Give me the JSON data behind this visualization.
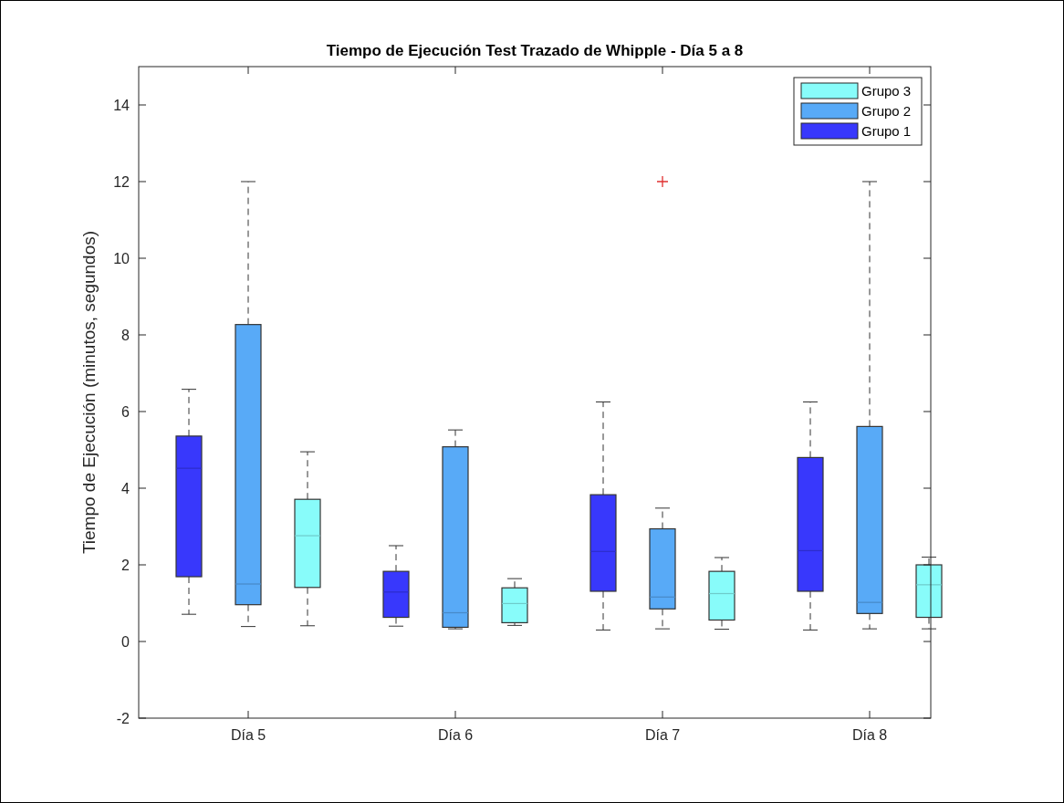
{
  "chart_data": {
    "type": "box",
    "title": "Tiempo de Ejecución Test Trazado de Whipple - Día 5 a 8",
    "ylabel": "Tiempo de Ejecución (minutos, segundos)",
    "categories": [
      "Día 5",
      "Día 6",
      "Día 7",
      "Día 8"
    ],
    "ylim": [
      -2,
      15
    ],
    "yticks": [
      -2,
      0,
      2,
      4,
      6,
      8,
      10,
      12,
      14
    ],
    "grid": false,
    "legend": "top right",
    "series": [
      {
        "name": "Grupo 1",
        "color": "#3838fc",
        "boxes": [
          {
            "low": 0.71,
            "q1": 1.69,
            "median": 4.52,
            "q3": 5.36,
            "high": 6.58
          },
          {
            "low": 0.4,
            "q1": 0.63,
            "median": 1.29,
            "q3": 1.83,
            "high": 2.5
          },
          {
            "low": 0.3,
            "q1": 1.31,
            "median": 2.35,
            "q3": 3.83,
            "high": 6.25
          },
          {
            "low": 0.3,
            "q1": 1.31,
            "median": 2.37,
            "q3": 4.8,
            "high": 6.25
          }
        ]
      },
      {
        "name": "Grupo 2",
        "color": "#58aaf7",
        "boxes": [
          {
            "low": 0.39,
            "q1": 0.96,
            "median": 1.5,
            "q3": 8.27,
            "high": 12
          },
          {
            "low": 0.33,
            "q1": 0.37,
            "median": 0.75,
            "q3": 5.08,
            "high": 5.52
          },
          {
            "low": 0.33,
            "q1": 0.85,
            "median": 1.16,
            "q3": 2.94,
            "high": 3.48,
            "outliers": [
              12
            ]
          },
          {
            "low": 0.33,
            "q1": 0.73,
            "median": 1.02,
            "q3": 5.61,
            "high": 12
          }
        ]
      },
      {
        "name": "Grupo 3",
        "color": "#88fcfa",
        "boxes": [
          {
            "low": 0.41,
            "q1": 1.41,
            "median": 2.76,
            "q3": 3.71,
            "high": 4.95
          },
          {
            "low": 0.42,
            "q1": 0.49,
            "median": 0.99,
            "q3": 1.4,
            "high": 1.64
          },
          {
            "low": 0.32,
            "q1": 0.56,
            "median": 1.25,
            "q3": 1.83,
            "high": 2.19
          },
          {
            "low": 0.33,
            "q1": 0.63,
            "median": 1.48,
            "q3": 2.0,
            "high": 2.2
          }
        ]
      }
    ]
  }
}
